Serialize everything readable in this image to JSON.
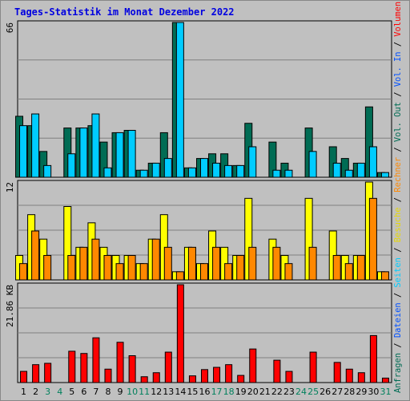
{
  "title": "Tages-Statistik im Monat Dezember 2022",
  "chart_data": [
    {
      "type": "bar",
      "name": "panel-requests",
      "y_axis_label": "66",
      "ylim": [
        0,
        66
      ],
      "series": [
        {
          "name": "Anfragen",
          "color": "#006c54",
          "values": [
            26,
            22,
            11,
            0,
            21,
            21,
            22,
            15,
            19,
            20,
            3,
            6,
            19,
            66,
            4,
            8,
            10,
            10,
            5,
            23,
            0,
            15,
            6,
            0,
            21,
            0,
            13,
            8,
            6,
            30,
            2
          ]
        },
        {
          "name": "Dateien",
          "color": "#00ccff",
          "values": [
            22,
            27,
            5,
            0,
            10,
            21,
            27,
            4,
            19,
            20,
            3,
            6,
            8,
            66,
            4,
            8,
            6,
            5,
            5,
            13,
            0,
            3,
            3,
            0,
            11,
            0,
            6,
            3,
            6,
            13,
            2
          ]
        },
        {
          "name": "Seiten",
          "color": "#00ccff",
          "values": []
        }
      ]
    },
    {
      "type": "bar",
      "name": "panel-visits",
      "y_axis_label": "12",
      "ylim": [
        0,
        12
      ],
      "series": [
        {
          "name": "Besuche",
          "color": "#ffff00",
          "values": [
            3,
            8,
            5,
            0,
            9,
            4,
            7,
            4,
            3,
            3,
            2,
            5,
            8,
            1,
            4,
            2,
            6,
            4,
            3,
            10,
            0,
            5,
            3,
            0,
            10,
            0,
            6,
            3,
            3,
            12,
            1
          ]
        },
        {
          "name": "Rechner",
          "color": "#ff8800",
          "values": [
            2,
            6,
            3,
            0,
            3,
            4,
            5,
            3,
            2,
            3,
            2,
            5,
            4,
            1,
            4,
            2,
            4,
            2,
            3,
            4,
            0,
            4,
            2,
            0,
            4,
            0,
            3,
            2,
            3,
            10,
            1
          ]
        }
      ]
    },
    {
      "type": "bar",
      "name": "panel-volume",
      "y_axis_label": "21.86 KB",
      "ylim": [
        0,
        21.86
      ],
      "series": [
        {
          "name": "Volumen",
          "color": "#ff0000",
          "values": [
            2.5,
            4.0,
            4.3,
            0,
            7.0,
            6.5,
            10.0,
            3.0,
            9.0,
            6.0,
            1.3,
            2.2,
            6.8,
            21.86,
            1.5,
            2.9,
            3.4,
            4.0,
            1.6,
            7.5,
            0,
            5.0,
            2.5,
            0,
            6.8,
            0,
            4.5,
            3.0,
            2.2,
            10.5,
            1.0
          ]
        }
      ]
    }
  ],
  "x_axis": {
    "categories": [
      "1",
      "2",
      "3",
      "4",
      "5",
      "6",
      "7",
      "8",
      "9",
      "10",
      "11",
      "12",
      "13",
      "14",
      "15",
      "16",
      "17",
      "18",
      "19",
      "20",
      "21",
      "22",
      "23",
      "24",
      "25",
      "26",
      "27",
      "28",
      "29",
      "30",
      "31"
    ],
    "weekend_days": [
      3,
      4,
      10,
      11,
      17,
      18,
      24,
      25,
      31
    ],
    "weekday_color": "#000000",
    "weekend_color": "#00805c"
  },
  "legend_right": [
    {
      "text": "Anfragen",
      "color": "#006c54"
    },
    {
      "text": " / ",
      "color": "#000000"
    },
    {
      "text": "Dateien",
      "color": "#0050ff"
    },
    {
      "text": " / ",
      "color": "#000000"
    },
    {
      "text": "Seiten",
      "color": "#00ccff"
    },
    {
      "text": " / ",
      "color": "#000000"
    },
    {
      "text": "Besuche",
      "color": "#e8d800"
    },
    {
      "text": " / ",
      "color": "#000000"
    },
    {
      "text": "Rechner",
      "color": "#ff8800"
    },
    {
      "text": " / ",
      "color": "#000000"
    },
    {
      "text": "Vol. Out",
      "color": "#006c54"
    },
    {
      "text": " / ",
      "color": "#000000"
    },
    {
      "text": "Vol. In",
      "color": "#0050ff"
    },
    {
      "text": " / ",
      "color": "#000000"
    },
    {
      "text": "Volumen",
      "color": "#ff0000"
    }
  ]
}
